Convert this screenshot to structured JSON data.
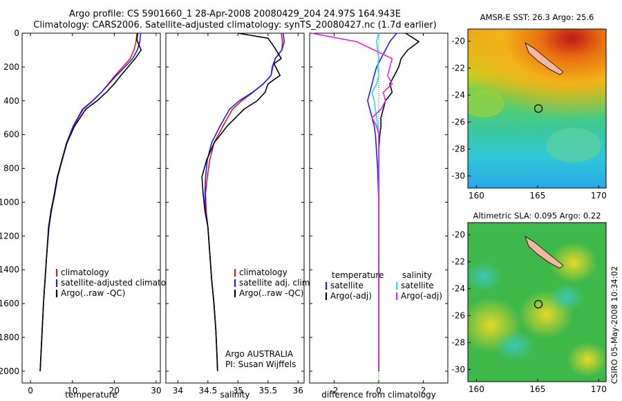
{
  "titles": {
    "line1": "Argo profile: CS 5901660_1 28-Apr-2008 20080429_204 24.97S 164.943E",
    "line2": "Climatology: CARS2006. Satellite-adjusted climatology: synTS_20080427.nc (1.7d earlier)"
  },
  "colors": {
    "climatology": "#e8141c",
    "satellite": "#1c1cf0",
    "argo": "#000000",
    "sat_sal": "#19e6e6",
    "argo_sal": "#f01cf0"
  },
  "chart_data": [
    {
      "type": "line",
      "id": "temperature",
      "xlabel": "temperature",
      "ylabel": "",
      "xlim": [
        -2,
        31
      ],
      "ylim": [
        2070,
        0
      ],
      "xticks": [
        0,
        10,
        20,
        30
      ],
      "yticks": [
        0,
        200,
        400,
        600,
        800,
        1000,
        1200,
        1400,
        1600,
        1800,
        2000
      ],
      "legend": [
        "climatology",
        "satellite-adjusted climatology",
        "Argo(..raw -QC)"
      ],
      "series": [
        {
          "name": "climatology",
          "color": "#e8141c",
          "x": [
            25.4,
            25.2,
            24.7,
            23.8,
            22.0,
            20.2,
            18.6,
            16.9,
            14.9,
            12.6,
            10.3,
            8.7,
            7.6,
            6.5,
            5.8,
            5.0,
            4.4,
            3.9,
            3.5,
            3.1,
            2.8,
            2.5,
            2.3
          ],
          "y": [
            0,
            50,
            100,
            150,
            200,
            250,
            300,
            350,
            400,
            450,
            550,
            650,
            750,
            850,
            950,
            1050,
            1150,
            1300,
            1450,
            1600,
            1750,
            1900,
            2000
          ]
        },
        {
          "name": "satellite-adjusted climatology",
          "color": "#1c1cf0",
          "x": [
            26.3,
            26.1,
            25.5,
            24.4,
            22.5,
            20.5,
            18.7,
            16.9,
            14.8,
            12.4,
            10.2,
            8.6,
            7.5,
            6.5,
            5.8,
            5.0,
            4.4,
            3.9,
            3.5,
            3.1,
            2.8,
            2.5,
            2.3
          ],
          "y": [
            0,
            50,
            100,
            150,
            200,
            250,
            300,
            350,
            400,
            450,
            550,
            650,
            750,
            850,
            950,
            1050,
            1150,
            1300,
            1450,
            1600,
            1750,
            1900,
            2000
          ]
        },
        {
          "name": "Argo(..raw -QC)",
          "color": "#000000",
          "x": [
            25.6,
            25.4,
            26.4,
            25.0,
            23.3,
            21.6,
            20.0,
            18.1,
            15.9,
            13.2,
            10.5,
            8.7,
            7.5,
            6.4,
            5.7,
            4.9,
            4.3,
            3.9,
            3.5,
            3.1,
            2.8,
            2.5,
            2.3
          ],
          "y": [
            0,
            40,
            100,
            150,
            200,
            250,
            300,
            350,
            400,
            450,
            550,
            650,
            750,
            850,
            950,
            1050,
            1150,
            1300,
            1450,
            1600,
            1750,
            1900,
            2000
          ]
        }
      ]
    },
    {
      "type": "line",
      "id": "salinity",
      "xlabel": "salinity",
      "xlim": [
        33.8,
        36.1
      ],
      "ylim": [
        2070,
        0
      ],
      "xticks": [
        34,
        34.5,
        35,
        35.5,
        36
      ],
      "legend": [
        "climatology",
        "satellite adj. clim.",
        "Argo(..raw -QC)"
      ],
      "annotation": [
        "Argo AUSTRALIA",
        "PI: Susan Wijffels"
      ],
      "series": [
        {
          "name": "climatology",
          "color": "#e8141c",
          "x": [
            35.72,
            35.74,
            35.73,
            35.62,
            35.58,
            35.55,
            35.42,
            35.25,
            35.06,
            34.91,
            34.75,
            34.6,
            34.53,
            34.49,
            34.46,
            34.47,
            34.5,
            34.53,
            34.56,
            34.6,
            34.63,
            34.65,
            34.66
          ],
          "y": [
            0,
            50,
            100,
            150,
            200,
            250,
            300,
            350,
            400,
            450,
            550,
            650,
            750,
            850,
            950,
            1050,
            1150,
            1300,
            1450,
            1600,
            1750,
            1900,
            2000
          ]
        },
        {
          "name": "satellite adj. clim.",
          "color": "#1c1cf0",
          "x": [
            35.75,
            35.77,
            35.73,
            35.62,
            35.57,
            35.55,
            35.42,
            35.24,
            35.02,
            34.86,
            34.7,
            34.56,
            34.49,
            34.46,
            34.45,
            34.46,
            34.5,
            34.53,
            34.56,
            34.6,
            34.63,
            34.65,
            34.66
          ],
          "y": [
            0,
            50,
            100,
            150,
            200,
            250,
            300,
            350,
            400,
            450,
            550,
            650,
            750,
            850,
            950,
            1050,
            1150,
            1300,
            1450,
            1600,
            1750,
            1900,
            2000
          ]
        },
        {
          "name": "Argo(..raw -QC)",
          "color": "#000000",
          "x": [
            35.0,
            35.5,
            35.6,
            35.72,
            35.6,
            35.7,
            35.5,
            35.45,
            35.32,
            35.1,
            34.82,
            34.6,
            34.48,
            34.4,
            34.42,
            34.45,
            34.5,
            34.53,
            34.56,
            34.6,
            34.63,
            34.65,
            34.66
          ],
          "y": [
            0,
            30,
            80,
            150,
            180,
            250,
            300,
            350,
            400,
            450,
            550,
            650,
            750,
            850,
            950,
            1050,
            1150,
            1300,
            1450,
            1600,
            1750,
            1900,
            2000
          ]
        }
      ]
    },
    {
      "type": "line",
      "id": "difference",
      "xlabel": "difference from climatology",
      "xlim": [
        -3.1,
        3.1
      ],
      "ylim": [
        2070,
        0
      ],
      "xticks": [
        -2,
        0,
        2
      ],
      "legend_left": [
        "temperature",
        "satellite",
        "Argo(-adj)"
      ],
      "legend_right": [
        "salinity",
        "satellite",
        "Argo(-adj)"
      ],
      "series": [
        {
          "name": "temperature satellite",
          "color": "#1c1cf0",
          "x": [
            0.8,
            0.5,
            0.3,
            0.1,
            -0.1,
            -0.2,
            -0.3,
            -0.4,
            -0.5,
            -0.4,
            -0.3,
            -0.2,
            -0.15,
            -0.1,
            -0.05,
            0,
            0,
            0,
            0,
            0
          ],
          "y": [
            0,
            50,
            100,
            150,
            200,
            250,
            300,
            350,
            400,
            450,
            500,
            550,
            600,
            700,
            800,
            1000,
            1200,
            1500,
            1800,
            2000
          ]
        },
        {
          "name": "temperature Argo(-adj)",
          "color": "#000000",
          "x": [
            1.2,
            1.8,
            1.3,
            1.0,
            0.9,
            0.7,
            0.5,
            0.6,
            0.3,
            0.2,
            0.1,
            0.1,
            0.05,
            0,
            0,
            0,
            0,
            0,
            0,
            0
          ],
          "y": [
            0,
            50,
            100,
            150,
            200,
            250,
            300,
            350,
            400,
            450,
            500,
            550,
            600,
            700,
            800,
            1000,
            1200,
            1500,
            1800,
            2000
          ]
        },
        {
          "name": "salinity satellite",
          "color": "#19e6e6",
          "x": [
            0.0,
            -0.1,
            -0.05,
            0.0,
            -0.05,
            0.0,
            -0.1,
            -0.3,
            -0.2,
            -0.15,
            -0.1,
            -0.05,
            0,
            0,
            0,
            0,
            0,
            0,
            0,
            0
          ],
          "y": [
            0,
            50,
            100,
            150,
            200,
            250,
            300,
            350,
            400,
            450,
            500,
            550,
            600,
            700,
            800,
            1000,
            1200,
            1500,
            1800,
            2000
          ]
        },
        {
          "name": "salinity Argo(-adj)",
          "color": "#f01cf0",
          "x": [
            -3.0,
            -1.0,
            -0.2,
            0.6,
            0.5,
            0.4,
            0.6,
            0.2,
            0.3,
            0.1,
            -0.3,
            -0.1,
            0,
            0,
            0,
            0,
            0,
            0,
            0,
            0
          ],
          "y": [
            0,
            50,
            100,
            150,
            200,
            250,
            300,
            350,
            400,
            450,
            500,
            550,
            600,
            700,
            800,
            1000,
            1200,
            1500,
            1800,
            2000
          ]
        }
      ]
    }
  ],
  "maps": {
    "sst_title": "AMSR-E SST: 26.3 Argo: 25.6",
    "sla_title": "Altimetric SLA: 0.095 Argo: 0.22",
    "x_ticks": [
      160,
      165,
      170
    ],
    "y_ticks": [
      -20,
      -22,
      -24,
      -26,
      -28,
      -30
    ],
    "argo_position": [
      164.943,
      -24.97
    ]
  },
  "footer": {
    "stamp": "CSIRO 05-May-2008 10:34:02"
  }
}
